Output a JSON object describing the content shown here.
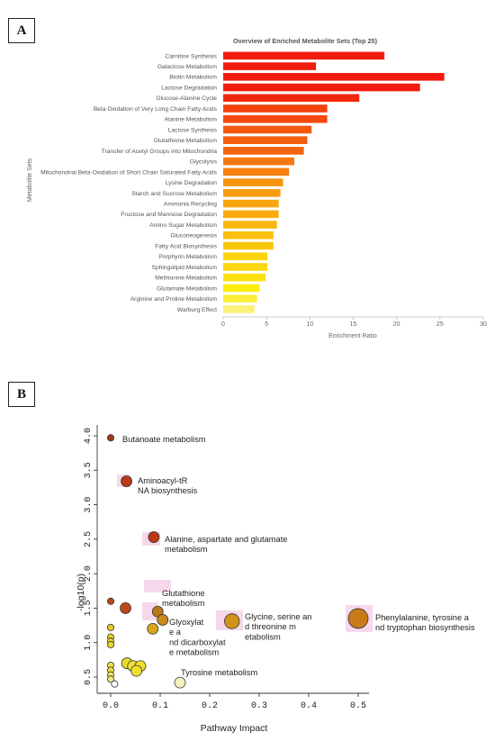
{
  "panel_labels": {
    "a": "A",
    "b": "B"
  },
  "chart_data": [
    {
      "type": "bar",
      "orientation": "horizontal",
      "title": "Overview of Enriched Metabolite Sets (Top 25)",
      "xlabel": "Enrichment Ratio",
      "ylabel": "Metabolite Sets",
      "xlim": [
        0,
        30
      ],
      "xticks": [
        "0",
        "5",
        "10",
        "15",
        "20",
        "25",
        "30"
      ],
      "grid": false,
      "categories": [
        "Carnitine Synthesis",
        "Galactose Metabolism",
        "Biotin Metabolism",
        "Lactose Degradation",
        "Glucose-Alanine Cycle",
        "Beta Oxidation of Very Long Chain Fatty Acids",
        "Alanine Metabolism",
        "Lactose Synthesis",
        "Glutathione Metabolism",
        "Transfer of Acetyl Groups into Mitochondria",
        "Glycolysis",
        "Mitochondrial Beta-Oxidation of Short Chain Saturated Fatty Acids",
        "Lysine Degradation",
        "Starch and Sucrose Metabolism",
        "Ammonia Recycling",
        "Fructose and Mannose Degradation",
        "Amino Sugar Metabolism",
        "Gluconeogenesis",
        "Fatty Acid Biosynthesis",
        "Porphyrin Metabolism",
        "Sphingolipid Metabolism",
        "Methionine Metabolism",
        "Glutamate Metabolism",
        "Arginine and Proline Metabolism",
        "Warburg Effect"
      ],
      "values": [
        18.6,
        10.7,
        25.5,
        22.7,
        15.7,
        12.0,
        12.0,
        10.2,
        9.7,
        9.3,
        8.2,
        7.6,
        6.9,
        6.6,
        6.4,
        6.4,
        6.2,
        5.8,
        5.8,
        5.1,
        5.1,
        4.9,
        4.2,
        3.9,
        3.6
      ],
      "colors": [
        "#f21c0e",
        "#f21c0e",
        "#f21c0e",
        "#f21c0e",
        "#f2280e",
        "#f3420e",
        "#f3480e",
        "#f4580e",
        "#f45d0e",
        "#f5640e",
        "#f5780e",
        "#f67f0e",
        "#f6940e",
        "#f79c0e",
        "#f8a50e",
        "#f8ab0e",
        "#f8b50e",
        "#f9c00e",
        "#f9c60e",
        "#fad40e",
        "#fad70e",
        "#fbe20e",
        "#fbed0e",
        "#fcef3a",
        "#fcf079"
      ]
    },
    {
      "type": "scatter",
      "xlabel": "Pathway Impact",
      "ylabel": "-log10(p)",
      "xlim": [
        0,
        0.5
      ],
      "ylim": [
        0.5,
        4.0
      ],
      "xticks": [
        "0.0",
        "0.1",
        "0.2",
        "0.3",
        "0.4",
        "0.5"
      ],
      "yticks": [
        "0.5",
        "1.0",
        "1.5",
        "2.0",
        "2.5",
        "3.0",
        "3.5",
        "4.0"
      ],
      "grid": false,
      "points": [
        {
          "x": 0.0,
          "y": 3.97,
          "size": "small",
          "color": "#a63a14",
          "label": "Butanoate metabolism"
        },
        {
          "x": 0.032,
          "y": 3.34,
          "size": "medium",
          "color": "#b83a17",
          "label": "Aminoacyl-tRNA biosynthesis"
        },
        {
          "x": 0.087,
          "y": 2.53,
          "size": "medium",
          "color": "#c03815",
          "label": "Alanine, aspartate and glutamate metabolism"
        },
        {
          "x": 0.0,
          "y": 1.6,
          "size": "small",
          "color": "#b54a1c",
          "label": ""
        },
        {
          "x": 0.03,
          "y": 1.5,
          "size": "medium",
          "color": "#c0481a",
          "label": ""
        },
        {
          "x": 0.095,
          "y": 1.45,
          "size": "medium",
          "color": "#b8781a",
          "label": "Glutathione metabolism"
        },
        {
          "x": 0.105,
          "y": 1.33,
          "size": "medium",
          "color": "#c88a18",
          "label": "Glyoxylate and dicarboxylate metabolism"
        },
        {
          "x": 0.085,
          "y": 1.2,
          "size": "medium",
          "color": "#d7a81c",
          "label": ""
        },
        {
          "x": 0.245,
          "y": 1.31,
          "size": "large",
          "color": "#d09218",
          "label": "Glycine, serine and threonine metabolism"
        },
        {
          "x": 0.5,
          "y": 1.35,
          "size": "xlarge",
          "color": "#c97a18",
          "label": "Phenylalanine, tyrosine and tryptophan biosynthesis"
        },
        {
          "x": 0.0,
          "y": 1.22,
          "size": "small",
          "color": "#e8c822",
          "label": ""
        },
        {
          "x": 0.0,
          "y": 1.08,
          "size": "small",
          "color": "#ead02a",
          "label": ""
        },
        {
          "x": 0.0,
          "y": 1.02,
          "size": "small",
          "color": "#ead02a",
          "label": ""
        },
        {
          "x": 0.0,
          "y": 0.97,
          "size": "small",
          "color": "#ecd42e",
          "label": ""
        },
        {
          "x": 0.0,
          "y": 0.67,
          "size": "small",
          "color": "#eee04a",
          "label": ""
        },
        {
          "x": 0.0,
          "y": 0.6,
          "size": "small",
          "color": "#eee04a",
          "label": ""
        },
        {
          "x": 0.0,
          "y": 0.53,
          "size": "small",
          "color": "#f0e65a",
          "label": ""
        },
        {
          "x": 0.0,
          "y": 0.47,
          "size": "small",
          "color": "#f2ea7c",
          "label": ""
        },
        {
          "x": 0.008,
          "y": 0.4,
          "size": "small",
          "color": "#ffffff",
          "label": ""
        },
        {
          "x": 0.033,
          "y": 0.7,
          "size": "medium",
          "color": "#eadc2a",
          "label": ""
        },
        {
          "x": 0.045,
          "y": 0.66,
          "size": "medium",
          "color": "#eedf2e",
          "label": ""
        },
        {
          "x": 0.06,
          "y": 0.66,
          "size": "medium",
          "color": "#eedf2e",
          "label": ""
        },
        {
          "x": 0.052,
          "y": 0.59,
          "size": "medium",
          "color": "#efe030",
          "label": ""
        },
        {
          "x": 0.14,
          "y": 0.42,
          "size": "medium",
          "color": "#f7f0c0",
          "label": "Tyrosine metabolism"
        }
      ]
    }
  ]
}
